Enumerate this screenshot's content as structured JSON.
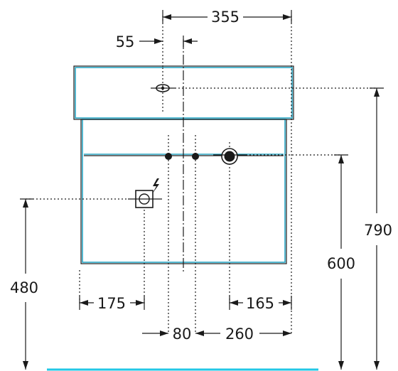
{
  "drawing": {
    "dimensions": {
      "d355": "355",
      "d55": "55",
      "d790": "790",
      "d600": "600",
      "d480": "480",
      "d175": "175",
      "d165": "165",
      "d80": "80",
      "d260": "260"
    },
    "symbols": {
      "electric_outlet": "power-outlet-icon",
      "lightning": "lightning-bolt-icon"
    },
    "colors": {
      "cabinet_outline": "#2aa6c4",
      "floor_line": "#22c7e6",
      "ink": "#1a1a1a"
    }
  }
}
